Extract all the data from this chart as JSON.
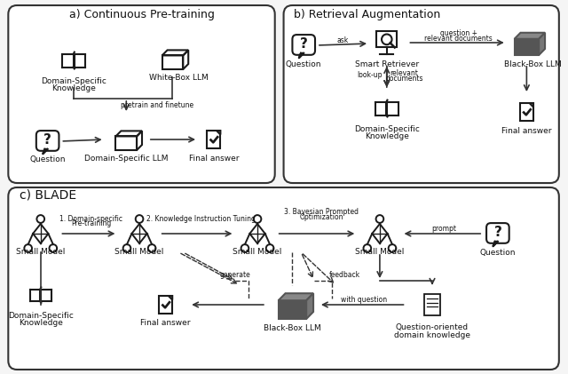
{
  "title_a": "a) Continuous Pre-training",
  "title_b": "b) Retrieval Augmentation",
  "title_c": "c) BLADE",
  "bg_color": "#f5f5f5",
  "box_color": "#ffffff",
  "border_color": "#333333",
  "text_color": "#111111",
  "arrow_color": "#333333",
  "icon_color": "#222222",
  "dark_icon_color": "#555555",
  "font_size_title": 9,
  "font_size_label": 6.5,
  "font_size_small": 5.5
}
